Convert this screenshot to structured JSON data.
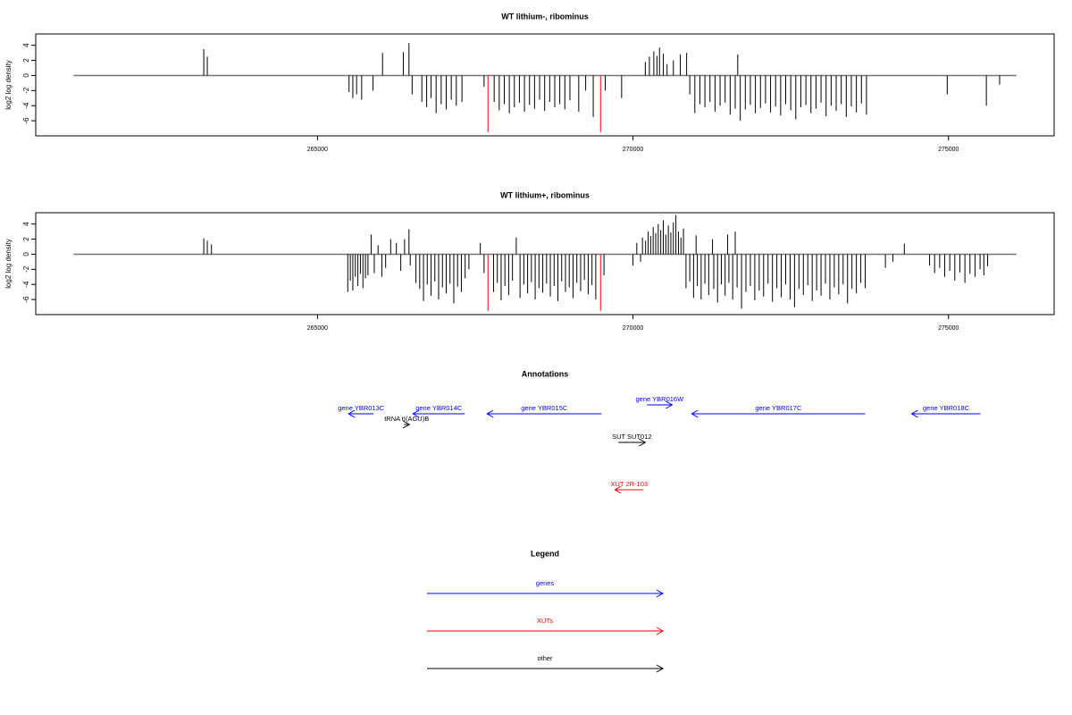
{
  "chart_data": [
    {
      "type": "bar",
      "title": "WT lithium-, ribominus",
      "ylabel": "log2 log density",
      "xlim": [
        260535,
        276674
      ],
      "xticks": [
        265000,
        270000,
        275000
      ],
      "ylim": [
        -8,
        5.5
      ],
      "yticks": [
        -6,
        -4,
        -2,
        0,
        2,
        4
      ],
      "series": [
        {
          "color": "#000000",
          "x": [
            263198,
            263254,
            265500,
            265560,
            265620,
            265700,
            265880,
            266031,
            266360,
            266450,
            266500,
            266654,
            266730,
            266800,
            266880,
            266960,
            267040,
            267120,
            267200,
            267290,
            267640,
            267800,
            267880,
            267960,
            268040,
            268120,
            268200,
            268280,
            268360,
            268440,
            268520,
            268600,
            268680,
            268760,
            268840,
            268920,
            269000,
            269140,
            269250,
            269370,
            269560,
            269820,
            270195,
            270260,
            270330,
            270380,
            270420,
            270480,
            270540,
            270640,
            270750,
            270850,
            270900,
            270980,
            271060,
            271140,
            271220,
            271300,
            271380,
            271460,
            271540,
            271620,
            271660,
            271700,
            271780,
            271860,
            271940,
            272020,
            272100,
            272180,
            272260,
            272340,
            272420,
            272500,
            272580,
            272660,
            272740,
            272820,
            272900,
            272980,
            273060,
            273140,
            273220,
            273300,
            273380,
            273460,
            273540,
            273620,
            273700,
            274980,
            275600,
            275810
          ],
          "values": [
            3.5,
            2.5,
            -2.2,
            -3.0,
            -2.5,
            -3.2,
            -2.0,
            3.0,
            3.1,
            4.3,
            -2.5,
            -3.5,
            -4.2,
            -3.0,
            -5.0,
            -3.8,
            -4.5,
            -3.2,
            -4.0,
            -3.5,
            -1.5,
            -3.5,
            -4.6,
            -3.8,
            -5.0,
            -4.2,
            -3.6,
            -4.8,
            -3.9,
            -4.4,
            -3.2,
            -4.7,
            -3.5,
            -4.2,
            -3.8,
            -4.5,
            -3.3,
            -4.8,
            -2.0,
            -5.5,
            -2.0,
            -3.0,
            1.8,
            2.5,
            3.2,
            2.6,
            3.7,
            2.9,
            1.5,
            2.0,
            2.8,
            3.0,
            -2.5,
            -5.0,
            -3.8,
            -4.2,
            -3.5,
            -4.8,
            -4.0,
            -3.6,
            -5.2,
            -4.4,
            2.8,
            -6.0,
            -4.5,
            -3.9,
            -5.0,
            -4.3,
            -3.7,
            -4.9,
            -4.1,
            -5.3,
            -3.8,
            -4.6,
            -5.8,
            -4.2,
            -3.9,
            -5.0,
            -4.4,
            -3.6,
            -5.4,
            -4.0,
            -4.7,
            -3.8,
            -5.5,
            -4.1,
            -4.9,
            -3.7,
            -5.2,
            -2.5,
            -4.0,
            -1.2
          ]
        },
        {
          "color": "#ff0000",
          "x": [
            267702,
            269486
          ],
          "values": [
            -7.5,
            -7.5
          ]
        }
      ]
    },
    {
      "type": "bar",
      "title": "WT lithium+, ribominus",
      "ylabel": "log2 log density",
      "xlim": [
        260535,
        276674
      ],
      "xticks": [
        265000,
        270000,
        275000
      ],
      "ylim": [
        -8,
        5.5
      ],
      "yticks": [
        -6,
        -4,
        -2,
        0,
        2,
        4
      ],
      "series": [
        {
          "color": "#000000",
          "x": [
            263198,
            263254,
            263320,
            265480,
            265520,
            265560,
            265600,
            265640,
            265680,
            265720,
            265760,
            265800,
            265850,
            265900,
            265960,
            266020,
            266080,
            266160,
            266250,
            266320,
            266380,
            266450,
            266470,
            266560,
            266620,
            266680,
            266740,
            266800,
            266860,
            266920,
            266980,
            267040,
            267100,
            267160,
            267220,
            267280,
            267340,
            267400,
            267580,
            267640,
            267790,
            267850,
            267910,
            267970,
            268030,
            268090,
            268150,
            268210,
            268270,
            268330,
            268390,
            268450,
            268510,
            268570,
            268630,
            268690,
            268750,
            268810,
            268870,
            268930,
            268990,
            269050,
            269110,
            269170,
            269230,
            269290,
            269350,
            269410,
            269540,
            270000,
            270060,
            270120,
            270150,
            270200,
            270240,
            270280,
            270320,
            270360,
            270400,
            270440,
            270480,
            270520,
            270560,
            270600,
            270640,
            270680,
            270720,
            270760,
            270800,
            270840,
            270900,
            270960,
            271000,
            271020,
            271080,
            271140,
            271200,
            271260,
            271280,
            271340,
            271400,
            271460,
            271500,
            271520,
            271580,
            271620,
            271650,
            271720,
            271790,
            271860,
            271930,
            272000,
            272070,
            272140,
            272210,
            272280,
            272350,
            272420,
            272490,
            272560,
            272630,
            272700,
            272770,
            272840,
            272910,
            272980,
            273050,
            273120,
            273190,
            273260,
            273330,
            273400,
            273470,
            273540,
            273610,
            273680,
            274000,
            274120,
            274300,
            274700,
            274780,
            274860,
            274940,
            275020,
            275100,
            275180,
            275260,
            275340,
            275420,
            275500,
            275560,
            275620
          ],
          "values": [
            2.1,
            1.8,
            1.3,
            -5.0,
            -3.5,
            -4.8,
            -3.0,
            -4.2,
            -2.6,
            -4.5,
            -3.2,
            -2.8,
            2.6,
            -2.5,
            1.2,
            -3.0,
            -1.8,
            2.0,
            1.5,
            -2.2,
            2.0,
            3.3,
            -1.5,
            -3.8,
            -4.6,
            -6.2,
            -4.0,
            -5.5,
            -3.6,
            -6.0,
            -4.4,
            -5.2,
            -3.9,
            -6.5,
            -4.3,
            -5.0,
            -3.2,
            -2.0,
            1.5,
            -2.5,
            -5.0,
            -3.8,
            -6.1,
            -4.2,
            -5.4,
            -3.5,
            2.2,
            -5.8,
            -4.0,
            -5.2,
            -3.7,
            -6.0,
            -4.5,
            -5.1,
            -3.9,
            -5.6,
            -4.2,
            -6.2,
            -3.6,
            -5.0,
            -4.4,
            -5.8,
            -3.8,
            -4.9,
            -3.4,
            -5.3,
            -4.1,
            -6.0,
            -2.8,
            -1.5,
            1.5,
            -1.0,
            2.2,
            1.8,
            3.0,
            2.4,
            3.6,
            2.8,
            4.0,
            3.2,
            4.5,
            2.6,
            3.8,
            2.9,
            4.2,
            5.2,
            3.0,
            2.2,
            3.4,
            -4.5,
            -3.6,
            -5.8,
            2.5,
            -4.2,
            -6.0,
            -3.9,
            -5.4,
            2.0,
            -4.6,
            -6.4,
            -4.0,
            -5.5,
            2.6,
            -3.8,
            -6.0,
            3.0,
            -4.4,
            -7.2,
            -5.0,
            -4.2,
            -6.1,
            -4.8,
            -5.6,
            -3.9,
            -6.3,
            -4.5,
            -5.7,
            -4.0,
            -6.0,
            -7.0,
            -4.6,
            -5.4,
            -4.1,
            -6.2,
            -4.8,
            -5.5,
            -3.9,
            -6.0,
            -4.4,
            -5.3,
            -4.0,
            -6.5,
            -4.6,
            -5.2,
            -3.8,
            -4.5,
            -1.8,
            -1.0,
            1.4,
            -1.5,
            -2.5,
            -1.8,
            -3.0,
            -2.2,
            -3.5,
            -2.4,
            -3.8,
            -2.6,
            -3.0,
            -2.0,
            -2.8,
            -1.6
          ]
        },
        {
          "color": "#ff0000",
          "x": [
            267702,
            269486
          ],
          "values": [
            -7.5,
            -7.5
          ]
        }
      ]
    }
  ],
  "annotations": {
    "title": "Annotations",
    "features": [
      {
        "label": "gene YBR013C",
        "start": 265889,
        "end": 265493,
        "color": "#0000ff"
      },
      {
        "label": "tRNA tI(AGU)B",
        "start": 266370,
        "end": 266456,
        "color": "#000000"
      },
      {
        "label": "gene YBR014C",
        "start": 267334,
        "end": 266512,
        "color": "#0000ff"
      },
      {
        "label": "gene YBR015C",
        "start": 269501,
        "end": 267688,
        "color": "#0000ff"
      },
      {
        "label": "gene YBR016W",
        "start": 270223,
        "end": 270620,
        "color": "#0000ff"
      },
      {
        "label": "gene YBR017C",
        "start": 273679,
        "end": 270931,
        "color": "#0000ff"
      },
      {
        "label": "gene YBR018C",
        "start": 275506,
        "end": 274416,
        "color": "#0000ff"
      },
      {
        "label": "SUT SUT012",
        "start": 269770,
        "end": 270195,
        "color": "#000000"
      },
      {
        "label": "XUT 2R-103",
        "start": 270166,
        "end": 269713,
        "color": "#ff0000"
      }
    ]
  },
  "legend": {
    "title": "Legend",
    "items": [
      {
        "name": "genes",
        "color": "#0000ff"
      },
      {
        "name": "XUTs",
        "color": "#ff0000"
      },
      {
        "name": "other",
        "color": "#000000"
      }
    ]
  }
}
